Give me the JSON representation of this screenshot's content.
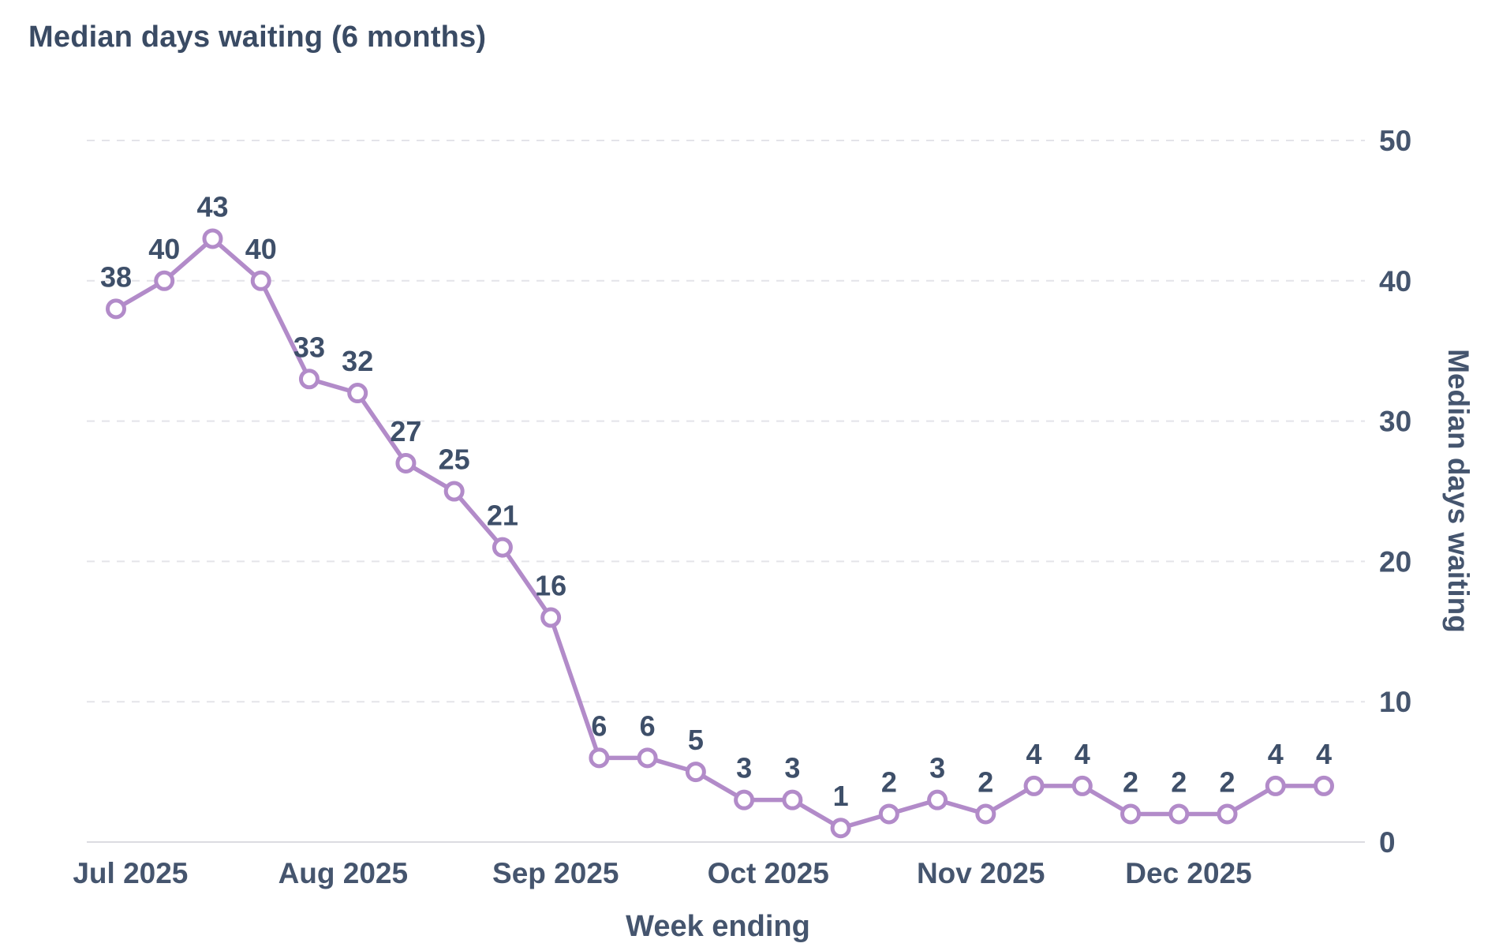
{
  "page": {
    "background": "#ffffff"
  },
  "chart_data": {
    "type": "line",
    "title": "Median days waiting (6 months)",
    "xlabel": "Week ending",
    "ylabel": "Median days waiting",
    "series": [
      {
        "name": "Median days waiting",
        "values": [
          38,
          40,
          43,
          40,
          33,
          32,
          27,
          25,
          21,
          16,
          6,
          6,
          5,
          3,
          3,
          1,
          2,
          3,
          2,
          4,
          4,
          2,
          2,
          2,
          4,
          4
        ]
      }
    ],
    "data_labels_shown": true,
    "x_tick_labels": [
      "Jul 2025",
      "Aug 2025",
      "Sep 2025",
      "Oct 2025",
      "Nov 2025",
      "Dec 2025"
    ],
    "x_tick_positions": [
      0.3,
      4.7,
      9.1,
      13.5,
      17.9,
      22.2
    ],
    "y_ticks": [
      0,
      10,
      20,
      30,
      40,
      50
    ],
    "ylim": [
      0,
      50
    ],
    "y_axis_side": "right",
    "grid": "horizontal-dashed",
    "legend": "none",
    "colors": {
      "line": "#b28bc9",
      "marker_fill": "#ffffff",
      "label_text": "#3e4f69",
      "axis_text": "#45556e",
      "gridline": "#e4e4e9",
      "axis_line": "#dcdce1"
    }
  }
}
